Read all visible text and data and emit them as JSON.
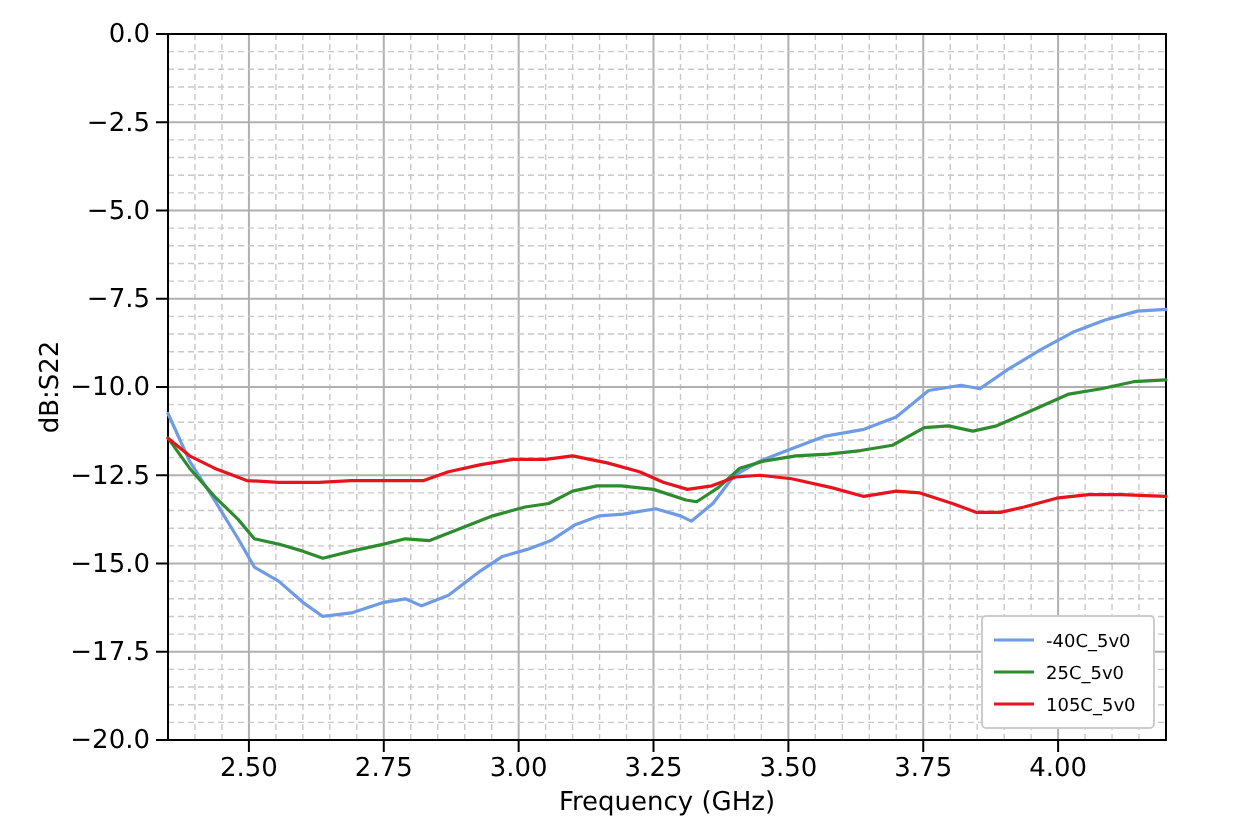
{
  "chart_data": {
    "type": "line",
    "xlabel": "Frequency (GHz)",
    "ylabel": "dB:S22",
    "xlim": [
      2.35,
      4.2
    ],
    "ylim": [
      -20,
      0
    ],
    "xticks": [
      {
        "value": 2.5,
        "label": "2.50"
      },
      {
        "value": 2.75,
        "label": "2.75"
      },
      {
        "value": 3.0,
        "label": "3.00"
      },
      {
        "value": 3.25,
        "label": "3.25"
      },
      {
        "value": 3.5,
        "label": "3.50"
      },
      {
        "value": 3.75,
        "label": "3.75"
      },
      {
        "value": 4.0,
        "label": "4.00"
      }
    ],
    "yticks": [
      {
        "value": -20,
        "label": "−20.0"
      },
      {
        "value": -17.5,
        "label": "−17.5"
      },
      {
        "value": -15,
        "label": "−15.0"
      },
      {
        "value": -12.5,
        "label": "−12.5"
      },
      {
        "value": -10,
        "label": "−10.0"
      },
      {
        "value": -7.5,
        "label": "−7.5"
      },
      {
        "value": -5,
        "label": "−5.0"
      },
      {
        "value": -2.5,
        "label": "−2.5"
      },
      {
        "value": 0,
        "label": "0.0"
      }
    ],
    "grid": true,
    "legend": "bottom right",
    "line_style": "solid",
    "series": [
      {
        "name": "-40C_5v0",
        "color": "#6f9be6",
        "x": [
          2.35,
          2.39,
          2.436,
          2.48,
          2.51,
          2.555,
          2.6,
          2.637,
          2.69,
          2.75,
          2.79,
          2.82,
          2.87,
          2.93,
          2.97,
          3.016,
          3.06,
          3.105,
          3.15,
          3.194,
          3.254,
          3.3,
          3.32,
          3.36,
          3.4,
          3.447,
          3.506,
          3.566,
          3.64,
          3.7,
          3.76,
          3.82,
          3.855,
          3.907,
          3.967,
          4.027,
          4.087,
          4.147,
          4.2
        ],
        "values": [
          -10.75,
          -12.1,
          -13.2,
          -14.3,
          -15.1,
          -15.5,
          -16.1,
          -16.5,
          -16.4,
          -16.1,
          -16.0,
          -16.2,
          -15.9,
          -15.2,
          -14.8,
          -14.6,
          -14.35,
          -13.9,
          -13.65,
          -13.6,
          -13.45,
          -13.65,
          -13.8,
          -13.3,
          -12.5,
          -12.1,
          -11.75,
          -11.4,
          -11.2,
          -10.85,
          -10.1,
          -9.95,
          -10.05,
          -9.5,
          -8.95,
          -8.45,
          -8.1,
          -7.85,
          -7.8
        ]
      },
      {
        "name": "25C_5v0",
        "color": "#2e8b2e",
        "x": [
          2.35,
          2.39,
          2.436,
          2.48,
          2.51,
          2.555,
          2.6,
          2.637,
          2.69,
          2.75,
          2.79,
          2.835,
          2.893,
          2.952,
          3.012,
          3.056,
          3.1,
          3.145,
          3.19,
          3.25,
          3.31,
          3.33,
          3.37,
          3.41,
          3.454,
          3.514,
          3.574,
          3.634,
          3.693,
          3.752,
          3.797,
          3.842,
          3.886,
          3.946,
          4.02,
          4.08,
          4.14,
          4.2
        ],
        "values": [
          -11.45,
          -12.3,
          -13.1,
          -13.75,
          -14.3,
          -14.45,
          -14.65,
          -14.85,
          -14.65,
          -14.45,
          -14.3,
          -14.35,
          -14.0,
          -13.65,
          -13.4,
          -13.3,
          -12.95,
          -12.8,
          -12.8,
          -12.9,
          -13.2,
          -13.25,
          -12.85,
          -12.3,
          -12.1,
          -11.95,
          -11.9,
          -11.8,
          -11.65,
          -11.15,
          -11.1,
          -11.25,
          -11.1,
          -10.7,
          -10.2,
          -10.05,
          -9.85,
          -9.8
        ]
      },
      {
        "name": "105C_5v0",
        "color": "#e8131c",
        "x": [
          2.35,
          2.39,
          2.436,
          2.496,
          2.555,
          2.63,
          2.69,
          2.75,
          2.824,
          2.87,
          2.93,
          2.99,
          3.05,
          3.1,
          3.164,
          3.224,
          3.268,
          3.313,
          3.358,
          3.402,
          3.447,
          3.506,
          3.58,
          3.64,
          3.7,
          3.744,
          3.804,
          3.848,
          3.893,
          3.937,
          3.997,
          4.056,
          4.116,
          4.2
        ],
        "values": [
          -11.45,
          -11.95,
          -12.3,
          -12.65,
          -12.7,
          -12.7,
          -12.65,
          -12.65,
          -12.65,
          -12.4,
          -12.2,
          -12.05,
          -12.05,
          -11.95,
          -12.15,
          -12.4,
          -12.7,
          -12.9,
          -12.8,
          -12.55,
          -12.5,
          -12.6,
          -12.85,
          -13.1,
          -12.95,
          -13.0,
          -13.3,
          -13.55,
          -13.55,
          -13.4,
          -13.15,
          -13.05,
          -13.05,
          -13.1
        ]
      }
    ]
  }
}
